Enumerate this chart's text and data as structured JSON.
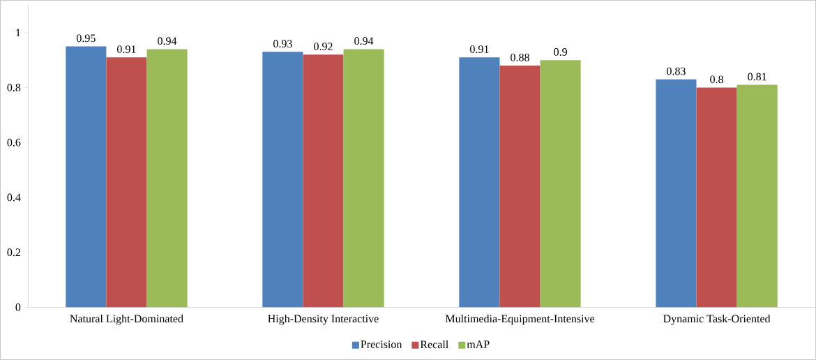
{
  "chart_data": {
    "type": "bar",
    "categories": [
      "Natural Light-Dominated",
      "High-Density Interactive",
      "Multimedia-Equipment-Intensive",
      "Dynamic Task-Oriented"
    ],
    "series": [
      {
        "name": "Precision",
        "color": "#4f81bd",
        "values": [
          0.95,
          0.93,
          0.91,
          0.83
        ]
      },
      {
        "name": "Recall",
        "color": "#c0504d",
        "values": [
          0.91,
          0.92,
          0.88,
          0.8
        ]
      },
      {
        "name": "mAP",
        "color": "#9bbb59",
        "values": [
          0.94,
          0.94,
          0.9,
          0.81
        ]
      }
    ],
    "ylim": [
      0,
      1.1
    ],
    "yticks": [
      0,
      0.2,
      0.4,
      0.6,
      0.8,
      1
    ],
    "data_labels": true,
    "legend": "bottom",
    "grid": false
  }
}
